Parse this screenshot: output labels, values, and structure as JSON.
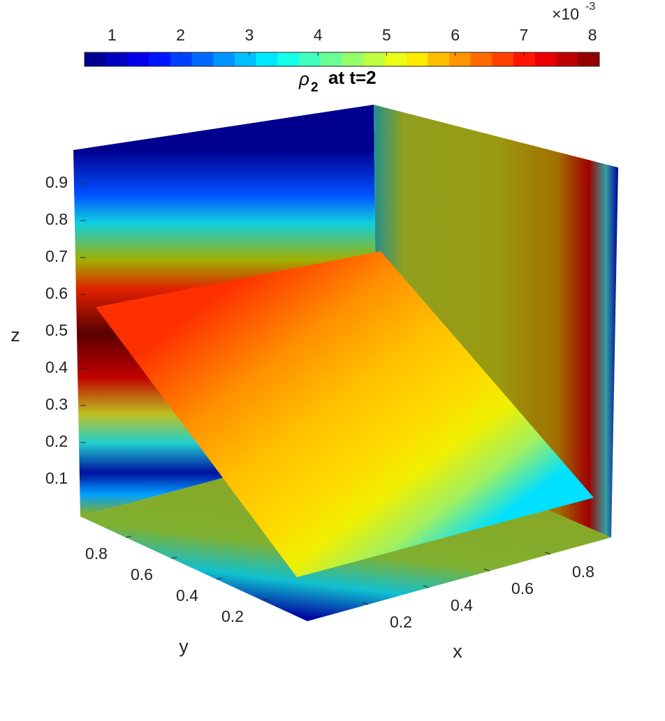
{
  "chart_data": {
    "type": "slice",
    "title": {
      "symbol": "ρ",
      "subscript": "2",
      "text": "at  t=2"
    },
    "colorbar": {
      "colormap": "jet",
      "levels": 24,
      "clim": [
        0.6,
        8.1
      ],
      "ticks": [
        1,
        2,
        3,
        4,
        5,
        6,
        7,
        8
      ],
      "exponent_base": "×10",
      "exponent_power": "-3"
    },
    "xlabel": "x",
    "ylabel": "y",
    "zlabel": "z",
    "xlim": [
      0,
      1
    ],
    "ylim": [
      0,
      1
    ],
    "zlim": [
      0,
      1
    ],
    "xticks": [
      0.2,
      0.4,
      0.6,
      0.8
    ],
    "yticks": [
      0.2,
      0.4,
      0.6,
      0.8
    ],
    "zticks": [
      0.1,
      0.2,
      0.3,
      0.4,
      0.5,
      0.6,
      0.7,
      0.8,
      0.9
    ]
  }
}
